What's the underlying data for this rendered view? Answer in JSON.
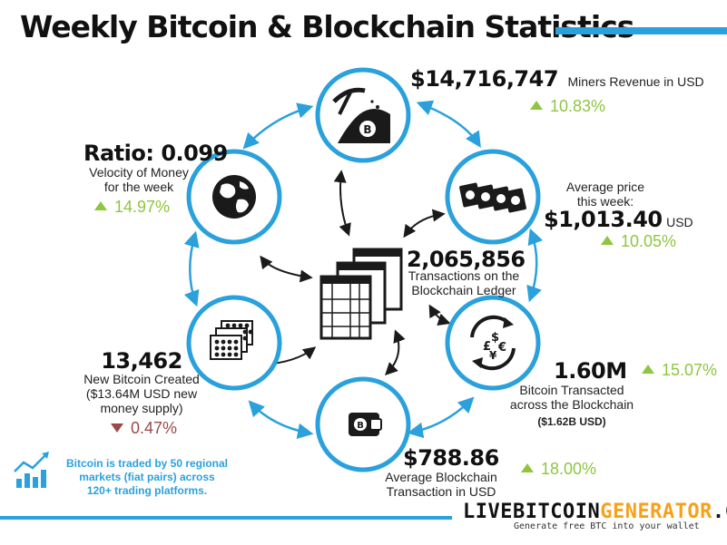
{
  "title": "Weekly Bitcoin & Blockchain Statistics",
  "colors": {
    "accent": "#2aa1dc",
    "up": "#8dc63f",
    "down": "#9b4a48",
    "brand_highlight": "#f7a11a"
  },
  "miners": {
    "value": "$14,716,747",
    "label": "Miners Revenue in USD",
    "change": "10.83%",
    "direction": "up",
    "icon": "mining-pickaxe-icon"
  },
  "price": {
    "label_line1": "Average price",
    "label_line2": "this week:",
    "value": "$1,013.40",
    "unit": "USD",
    "change": "10.05%",
    "direction": "up",
    "icon": "banknotes-icon"
  },
  "transacted": {
    "value": "1.60M",
    "change": "15.07%",
    "direction": "up",
    "label_line1": "Bitcoin Transacted",
    "label_line2": "across the Blockchain",
    "sub": "($1.62B USD)",
    "icon": "currency-exchange-icon"
  },
  "avg_tx": {
    "value": "$788.86",
    "label_line1": "Average Blockchain",
    "label_line2": "Transaction in USD",
    "change": "18.00%",
    "direction": "up",
    "icon": "bitcoin-wallet-icon"
  },
  "created": {
    "value": "13,462",
    "label_line1": "New Bitcoin Created",
    "label_line2": "($13.64M USD new",
    "label_line3": "money supply)",
    "change": "0.47%",
    "direction": "down",
    "icon": "coin-stacks-icon"
  },
  "velocity": {
    "value": "Ratio: 0.099",
    "label_line1": "Velocity of Money",
    "label_line2": "for the week",
    "change": "14.97%",
    "direction": "up",
    "icon": "globe-icon"
  },
  "center": {
    "value": "2,065,856",
    "label_line1": "Transactions on the",
    "label_line2": "Blockchain Ledger",
    "icon": "ledger-icon"
  },
  "note": {
    "line1": "Bitcoin is traded by 50 regional",
    "line2": "markets (fiat pairs) across",
    "line3": "120+ trading platforms.",
    "icon": "trend-chart-icon"
  },
  "brand": {
    "part1": "LIVEBITCOIN",
    "part2": "GENERATOR",
    "part3": ".COM",
    "tagline": "Generate free BTC into your wallet"
  }
}
